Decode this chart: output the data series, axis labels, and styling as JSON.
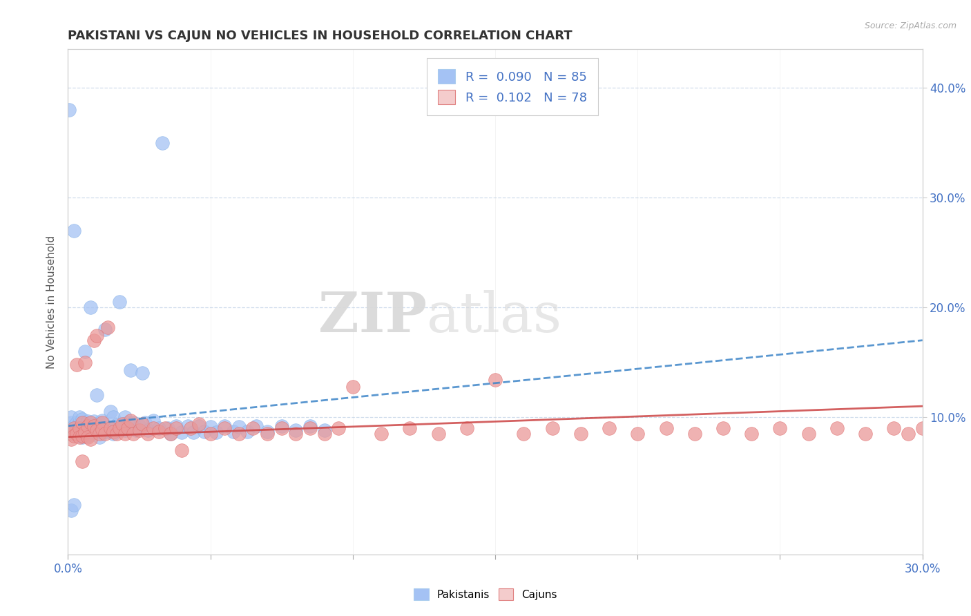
{
  "title": "PAKISTANI VS CAJUN NO VEHICLES IN HOUSEHOLD CORRELATION CHART",
  "source": "Source: ZipAtlas.com",
  "ylabel": "No Vehicles in Household",
  "ylabel_right_ticks": [
    "40.0%",
    "30.0%",
    "20.0%",
    "10.0%"
  ],
  "ylabel_right_values": [
    0.4,
    0.3,
    0.2,
    0.1
  ],
  "x_min": 0.0,
  "x_max": 0.3,
  "y_min": -0.025,
  "y_max": 0.435,
  "blue_color": "#6fa8dc",
  "pink_color": "#ea9999",
  "blue_marker": "#a4c2f4",
  "pink_marker": "#ea9999",
  "blue_light": "#a4c2f4",
  "pink_light": "#f4cccc",
  "pakistani_x": [
    0.0005,
    0.001,
    0.001,
    0.001,
    0.001,
    0.0015,
    0.002,
    0.002,
    0.002,
    0.003,
    0.003,
    0.003,
    0.003,
    0.004,
    0.004,
    0.004,
    0.004,
    0.005,
    0.005,
    0.005,
    0.005,
    0.006,
    0.006,
    0.006,
    0.007,
    0.007,
    0.007,
    0.008,
    0.008,
    0.008,
    0.009,
    0.009,
    0.01,
    0.01,
    0.01,
    0.011,
    0.011,
    0.012,
    0.012,
    0.013,
    0.013,
    0.014,
    0.015,
    0.015,
    0.016,
    0.016,
    0.017,
    0.018,
    0.018,
    0.019,
    0.02,
    0.02,
    0.021,
    0.022,
    0.023,
    0.024,
    0.025,
    0.026,
    0.027,
    0.028,
    0.03,
    0.032,
    0.033,
    0.035,
    0.036,
    0.038,
    0.04,
    0.042,
    0.044,
    0.046,
    0.048,
    0.05,
    0.052,
    0.055,
    0.058,
    0.06,
    0.063,
    0.066,
    0.07,
    0.075,
    0.08,
    0.085,
    0.09,
    0.001,
    0.002
  ],
  "pakistani_y": [
    0.38,
    0.085,
    0.09,
    0.095,
    0.1,
    0.088,
    0.27,
    0.09,
    0.092,
    0.086,
    0.092,
    0.095,
    0.083,
    0.09,
    0.095,
    0.085,
    0.1,
    0.088,
    0.093,
    0.082,
    0.098,
    0.09,
    0.16,
    0.087,
    0.092,
    0.083,
    0.096,
    0.2,
    0.087,
    0.093,
    0.09,
    0.096,
    0.12,
    0.087,
    0.093,
    0.095,
    0.082,
    0.097,
    0.086,
    0.18,
    0.09,
    0.087,
    0.105,
    0.09,
    0.1,
    0.085,
    0.093,
    0.205,
    0.088,
    0.093,
    0.1,
    0.088,
    0.095,
    0.143,
    0.095,
    0.088,
    0.092,
    0.14,
    0.095,
    0.088,
    0.097,
    0.09,
    0.35,
    0.09,
    0.085,
    0.092,
    0.086,
    0.092,
    0.086,
    0.092,
    0.087,
    0.091,
    0.086,
    0.092,
    0.087,
    0.091,
    0.087,
    0.092,
    0.087,
    0.092,
    0.088,
    0.092,
    0.088,
    0.015,
    0.02
  ],
  "cajun_x": [
    0.001,
    0.001,
    0.002,
    0.002,
    0.003,
    0.003,
    0.004,
    0.004,
    0.005,
    0.005,
    0.006,
    0.006,
    0.007,
    0.007,
    0.008,
    0.008,
    0.009,
    0.009,
    0.01,
    0.01,
    0.011,
    0.012,
    0.012,
    0.013,
    0.014,
    0.015,
    0.016,
    0.017,
    0.018,
    0.019,
    0.02,
    0.021,
    0.022,
    0.023,
    0.025,
    0.026,
    0.028,
    0.03,
    0.032,
    0.034,
    0.036,
    0.038,
    0.04,
    0.043,
    0.046,
    0.05,
    0.055,
    0.06,
    0.065,
    0.07,
    0.075,
    0.08,
    0.085,
    0.09,
    0.095,
    0.1,
    0.11,
    0.12,
    0.13,
    0.14,
    0.15,
    0.16,
    0.17,
    0.18,
    0.19,
    0.2,
    0.21,
    0.22,
    0.23,
    0.24,
    0.25,
    0.26,
    0.27,
    0.28,
    0.29,
    0.295,
    0.3,
    0.005
  ],
  "cajun_y": [
    0.085,
    0.08,
    0.09,
    0.083,
    0.085,
    0.148,
    0.09,
    0.082,
    0.095,
    0.083,
    0.15,
    0.086,
    0.092,
    0.082,
    0.095,
    0.08,
    0.092,
    0.17,
    0.088,
    0.174,
    0.085,
    0.095,
    0.089,
    0.085,
    0.182,
    0.09,
    0.087,
    0.085,
    0.09,
    0.094,
    0.085,
    0.09,
    0.097,
    0.085,
    0.088,
    0.094,
    0.085,
    0.09,
    0.087,
    0.09,
    0.085,
    0.09,
    0.07,
    0.09,
    0.094,
    0.085,
    0.09,
    0.085,
    0.09,
    0.085,
    0.09,
    0.085,
    0.09,
    0.085,
    0.09,
    0.128,
    0.085,
    0.09,
    0.085,
    0.09,
    0.134,
    0.085,
    0.09,
    0.085,
    0.09,
    0.085,
    0.09,
    0.085,
    0.09,
    0.085,
    0.09,
    0.085,
    0.09,
    0.085,
    0.09,
    0.085,
    0.09,
    0.06
  ],
  "pak_trend_x": [
    0.0,
    0.3
  ],
  "pak_trend_y": [
    0.092,
    0.17
  ],
  "caj_trend_x": [
    0.0,
    0.3
  ],
  "caj_trend_y": [
    0.082,
    0.11
  ]
}
